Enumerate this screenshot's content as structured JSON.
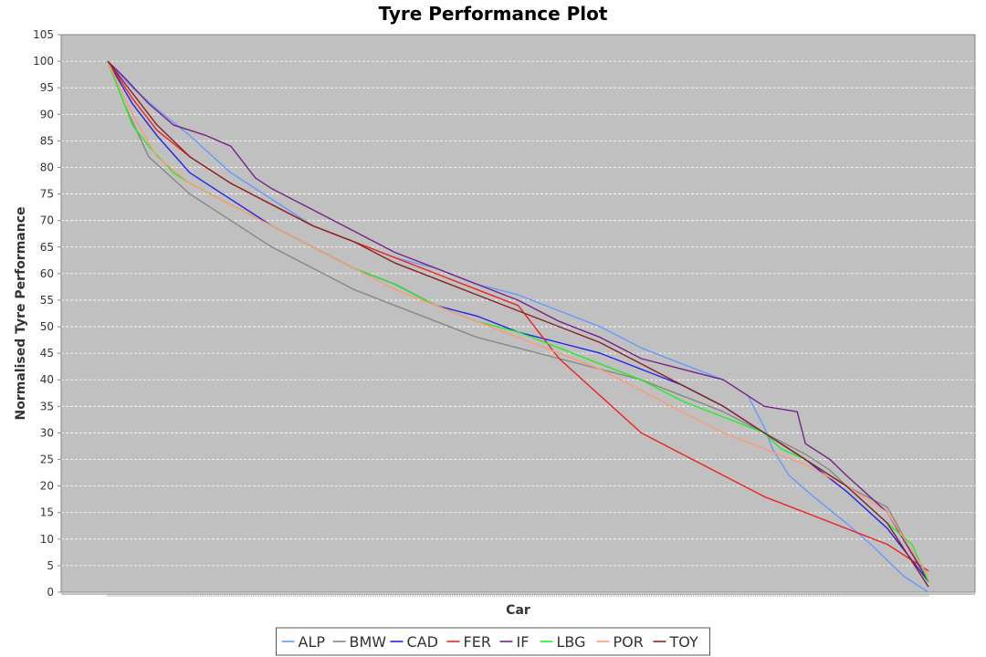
{
  "chart_data": {
    "type": "line",
    "title": "Tyre Performance Plot",
    "xlabel": "Car",
    "ylabel": "Normalised Tyre Performance",
    "ylim": [
      0,
      105
    ],
    "yticks": [
      0,
      5,
      10,
      15,
      20,
      25,
      30,
      35,
      40,
      45,
      50,
      55,
      60,
      65,
      70,
      75,
      80,
      85,
      90,
      95,
      100,
      105
    ],
    "xlim": [
      0,
      100
    ],
    "grid": true,
    "legend_position": "bottom",
    "plot_background": "#c0c0c0",
    "series": [
      {
        "name": "ALP",
        "color": "#6699ff",
        "x": [
          0,
          3,
          6,
          10,
          15,
          20,
          25,
          30,
          35,
          40,
          45,
          50,
          55,
          60,
          65,
          70,
          75,
          78,
          80,
          81,
          83,
          86,
          90,
          93,
          95,
          97,
          100
        ],
        "y": [
          100,
          95,
          91,
          86,
          79,
          74,
          69,
          66,
          63,
          61,
          58,
          56,
          53,
          50,
          46,
          43,
          40,
          37,
          31,
          27,
          22,
          18,
          13,
          9,
          6,
          3,
          0
        ]
      },
      {
        "name": "BMW",
        "color": "#888888",
        "x": [
          0,
          2,
          5,
          10,
          15,
          20,
          25,
          30,
          35,
          40,
          45,
          50,
          55,
          60,
          65,
          70,
          75,
          80,
          85,
          88,
          90,
          95,
          100
        ],
        "y": [
          100,
          92,
          82,
          75,
          70,
          65,
          61,
          57,
          54,
          51,
          48,
          46,
          44,
          42,
          40,
          37,
          34,
          30,
          26,
          23,
          20,
          16,
          2
        ]
      },
      {
        "name": "CAD",
        "color": "#2222ee",
        "x": [
          0,
          3,
          6,
          10,
          15,
          20,
          25,
          30,
          35,
          40,
          45,
          50,
          55,
          60,
          65,
          70,
          75,
          80,
          85,
          90,
          95,
          100
        ],
        "y": [
          100,
          92,
          86,
          79,
          74,
          69,
          65,
          61,
          58,
          54,
          52,
          49,
          47,
          45,
          42,
          39,
          35,
          30,
          25,
          19,
          12,
          2
        ]
      },
      {
        "name": "FER",
        "color": "#ee2222",
        "x": [
          0,
          3,
          6,
          10,
          15,
          20,
          25,
          30,
          35,
          40,
          45,
          50,
          53,
          55,
          60,
          65,
          70,
          75,
          80,
          85,
          90,
          95,
          100
        ],
        "y": [
          100,
          93,
          87,
          82,
          77,
          73,
          69,
          66,
          63,
          60,
          57,
          54,
          48,
          44,
          37,
          30,
          26,
          22,
          18,
          15,
          12,
          9,
          4
        ]
      },
      {
        "name": "IF",
        "color": "#772288",
        "x": [
          0,
          2,
          5,
          8,
          12,
          15,
          18,
          20,
          25,
          30,
          35,
          40,
          45,
          50,
          55,
          60,
          65,
          70,
          75,
          80,
          84,
          85,
          88,
          90,
          95,
          100
        ],
        "y": [
          100,
          97,
          92,
          88,
          86,
          84,
          78,
          76,
          72,
          68,
          64,
          61,
          58,
          55,
          51,
          48,
          44,
          42,
          40,
          35,
          34,
          28,
          25,
          22,
          15,
          2
        ]
      },
      {
        "name": "LBG",
        "color": "#22ee22",
        "x": [
          0,
          2,
          3,
          5,
          8,
          10,
          15,
          20,
          25,
          30,
          35,
          40,
          45,
          50,
          55,
          60,
          65,
          70,
          75,
          80,
          82,
          85,
          90,
          95,
          98,
          100
        ],
        "y": [
          100,
          92,
          88,
          84,
          79,
          77,
          73,
          69,
          65,
          61,
          58,
          54,
          51,
          49,
          46,
          43,
          40,
          36,
          33,
          30,
          27,
          25,
          20,
          13,
          9,
          2
        ]
      },
      {
        "name": "POR",
        "color": "#ff9977",
        "x": [
          0,
          3,
          6,
          10,
          15,
          20,
          25,
          30,
          35,
          40,
          45,
          50,
          55,
          60,
          65,
          70,
          75,
          80,
          85,
          90,
          95,
          100
        ],
        "y": [
          100,
          90,
          82,
          77,
          73,
          69,
          65,
          61,
          57,
          54,
          51,
          48,
          45,
          42,
          38,
          34,
          30,
          27,
          24,
          20,
          15,
          3
        ]
      },
      {
        "name": "TOY",
        "color": "#882222",
        "x": [
          0,
          3,
          6,
          10,
          15,
          20,
          25,
          30,
          35,
          40,
          45,
          50,
          55,
          60,
          65,
          70,
          75,
          80,
          85,
          90,
          95,
          100
        ],
        "y": [
          100,
          94,
          88,
          82,
          77,
          73,
          69,
          66,
          62,
          59,
          56,
          53,
          50,
          47,
          43,
          39,
          35,
          30,
          25,
          20,
          13,
          1
        ]
      }
    ]
  }
}
